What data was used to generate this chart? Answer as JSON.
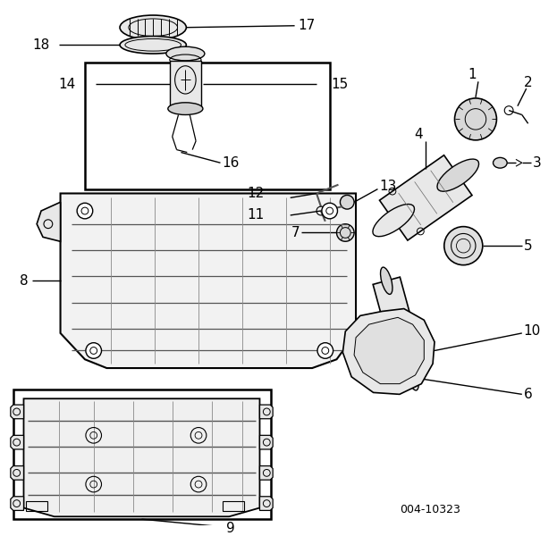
{
  "bg_color": "#ffffff",
  "line_color": "#000000",
  "fig_width": 6.23,
  "fig_height": 6.0,
  "dpi": 100,
  "diagram_code": "004-10323"
}
